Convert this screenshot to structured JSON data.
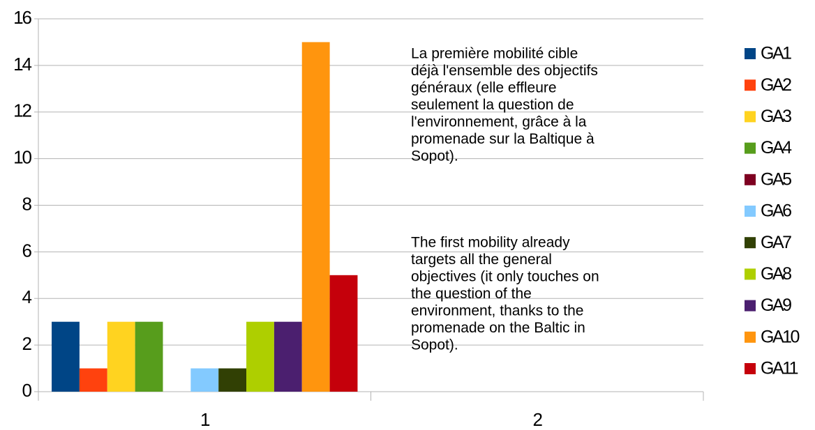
{
  "chart_data": {
    "type": "bar",
    "categories": [
      "1",
      "2"
    ],
    "series": [
      {
        "name": "GA1",
        "color": "#004586",
        "values": [
          3,
          null
        ]
      },
      {
        "name": "GA2",
        "color": "#ff420e",
        "values": [
          1,
          null
        ]
      },
      {
        "name": "GA3",
        "color": "#ffd320",
        "values": [
          3,
          null
        ]
      },
      {
        "name": "GA4",
        "color": "#579d1c",
        "values": [
          3,
          null
        ]
      },
      {
        "name": "GA5",
        "color": "#7e0021",
        "values": [
          0,
          null
        ]
      },
      {
        "name": "GA6",
        "color": "#83caff",
        "values": [
          1,
          null
        ]
      },
      {
        "name": "GA7",
        "color": "#314004",
        "values": [
          1,
          null
        ]
      },
      {
        "name": "GA8",
        "color": "#aecf00",
        "values": [
          3,
          null
        ]
      },
      {
        "name": "GA9",
        "color": "#4b1f6f",
        "values": [
          3,
          null
        ]
      },
      {
        "name": "GA10",
        "color": "#ff950e",
        "values": [
          15,
          null
        ]
      },
      {
        "name": "GA11",
        "color": "#c5000b",
        "values": [
          5,
          null
        ]
      }
    ],
    "ylim": [
      0,
      16
    ],
    "yticks": [
      0,
      2,
      4,
      6,
      8,
      10,
      12,
      14,
      16
    ],
    "grid": true,
    "legend": "right",
    "annotations": [
      [
        "La première mobilité cible",
        "déjà l'ensemble des objectifs",
        "généraux (elle effleure",
        "seulement la question de",
        "l'environnement, grâce à la",
        "promenade sur la Baltique à",
        "Sopot)."
      ],
      [
        "The first mobility already",
        "targets all the general",
        "objectives (it only touches on",
        "the question of the",
        "environment, thanks to the",
        "promenade on the Baltic in",
        "Sopot)."
      ]
    ]
  }
}
